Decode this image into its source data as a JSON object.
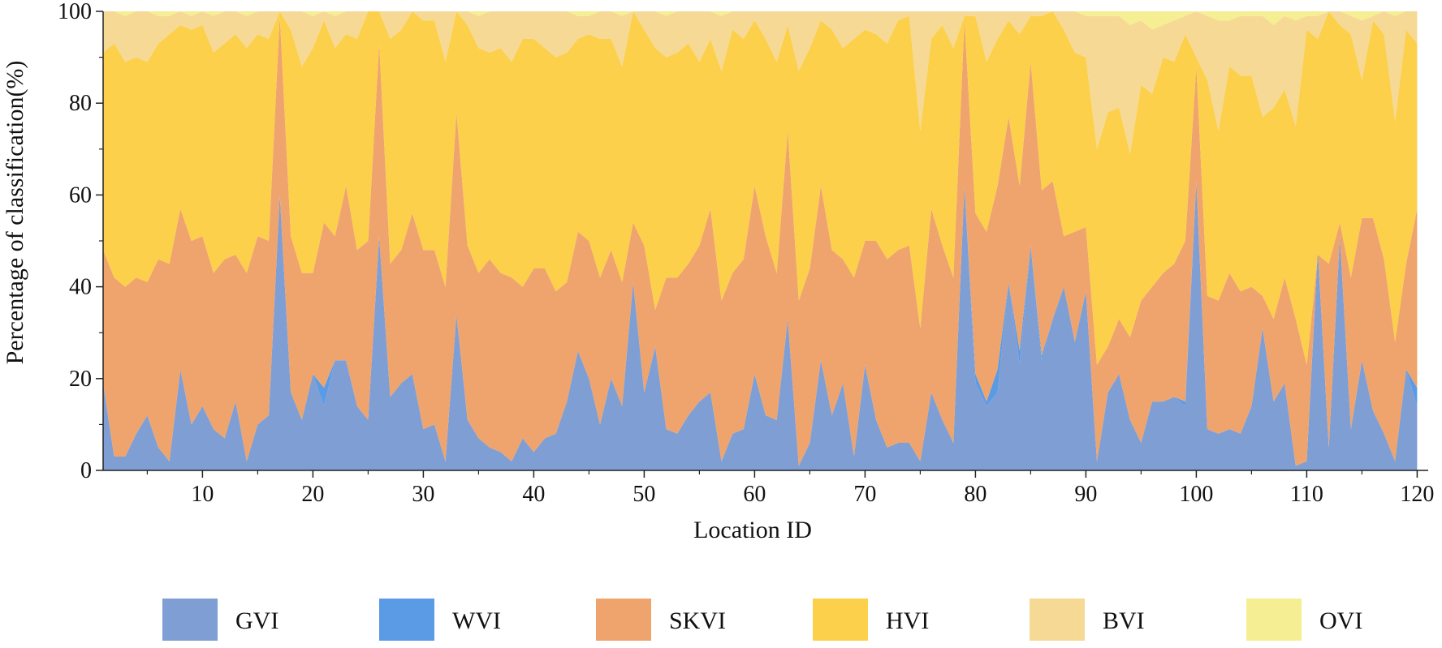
{
  "chart_data": {
    "type": "area",
    "stacked": true,
    "xlabel": "Location ID",
    "ylabel": "Percentage of classification(%)",
    "xlim": [
      1,
      121
    ],
    "ylim": [
      0,
      100
    ],
    "x_ticks": [
      10,
      20,
      30,
      40,
      50,
      60,
      70,
      80,
      90,
      100,
      110,
      120
    ],
    "y_ticks": [
      0,
      20,
      40,
      60,
      80,
      100
    ],
    "legend_position": "bottom",
    "cumulative_boundaries": {
      "description": "Upper boundary of each stacked band (percent)",
      "GVI": [
        19,
        3,
        3,
        8,
        12,
        5,
        2,
        22,
        10,
        14,
        9,
        7,
        15,
        2,
        10,
        12,
        60,
        17,
        11,
        21,
        14,
        24,
        24,
        14,
        11,
        51,
        16,
        19,
        21,
        9,
        10,
        2,
        34,
        11,
        7,
        5,
        4,
        2,
        7,
        4,
        7,
        8,
        15,
        26,
        20,
        10,
        20,
        14,
        41,
        17,
        27,
        9,
        8,
        12,
        15,
        17,
        2,
        8,
        9,
        21,
        12,
        11,
        33,
        1,
        6,
        24,
        12,
        19,
        3,
        23,
        11,
        5,
        6,
        6,
        2,
        17,
        11,
        6,
        62,
        19,
        14,
        17,
        41,
        23,
        49,
        24,
        33,
        40,
        28,
        39,
        2,
        17,
        21,
        11,
        6,
        15,
        15,
        16,
        14,
        63,
        9,
        8,
        9,
        8,
        14,
        31,
        15,
        19,
        1,
        2,
        48,
        5,
        51,
        9,
        24,
        13,
        8,
        2,
        22,
        14
      ],
      "WVI": [
        19,
        3,
        3,
        8,
        12,
        5,
        2,
        22,
        10,
        14,
        9,
        7,
        15,
        2,
        10,
        12,
        60,
        17,
        11,
        21,
        18,
        24,
        24,
        14,
        11,
        51,
        16,
        19,
        21,
        9,
        10,
        2,
        34,
        11,
        7,
        5,
        4,
        2,
        7,
        4,
        7,
        8,
        15,
        26,
        20,
        10,
        20,
        14,
        41,
        17,
        27,
        9,
        8,
        12,
        15,
        17,
        2,
        8,
        9,
        21,
        12,
        11,
        33,
        1,
        6,
        24,
        12,
        19,
        3,
        23,
        11,
        5,
        6,
        6,
        2,
        17,
        11,
        6,
        62,
        21,
        15,
        22,
        41,
        26,
        49,
        25,
        33,
        40,
        28,
        39,
        2,
        17,
        21,
        11,
        6,
        15,
        15,
        16,
        15,
        63,
        9,
        8,
        9,
        8,
        14,
        31,
        15,
        19,
        1,
        2,
        48,
        5,
        51,
        9,
        24,
        13,
        8,
        2,
        22,
        18
      ],
      "SKVI": [
        48,
        42,
        40,
        42,
        41,
        46,
        45,
        57,
        50,
        51,
        43,
        46,
        47,
        43,
        51,
        50,
        99,
        51,
        43,
        43,
        54,
        51,
        62,
        48,
        50,
        93,
        45,
        48,
        56,
        48,
        48,
        40,
        78,
        49,
        43,
        46,
        43,
        42,
        40,
        44,
        44,
        39,
        41,
        52,
        50,
        42,
        48,
        41,
        54,
        49,
        35,
        42,
        42,
        45,
        49,
        57,
        37,
        43,
        46,
        62,
        51,
        43,
        74,
        37,
        44,
        62,
        48,
        46,
        42,
        50,
        50,
        46,
        48,
        49,
        31,
        57,
        49,
        42,
        98,
        56,
        52,
        62,
        77,
        62,
        89,
        61,
        63,
        51,
        52,
        53,
        23,
        27,
        33,
        29,
        37,
        40,
        43,
        45,
        50,
        88,
        38,
        37,
        43,
        39,
        40,
        38,
        33,
        42,
        33,
        23,
        47,
        45,
        54,
        42,
        55,
        55,
        46,
        28,
        45,
        57
      ],
      "HVI": [
        91,
        93,
        89,
        90,
        89,
        93,
        95,
        97,
        96,
        97,
        91,
        93,
        95,
        92,
        95,
        94,
        100,
        96,
        88,
        92,
        98,
        92,
        95,
        94,
        100,
        100,
        94,
        96,
        100,
        98,
        98,
        89,
        100,
        97,
        92,
        91,
        92,
        89,
        94,
        94,
        92,
        90,
        91,
        94,
        95,
        94,
        94,
        88,
        100,
        96,
        92,
        90,
        91,
        93,
        89,
        94,
        87,
        96,
        94,
        98,
        94,
        89,
        97,
        87,
        92,
        98,
        96,
        92,
        94,
        96,
        95,
        93,
        98,
        99,
        74,
        94,
        97,
        92,
        99,
        99,
        89,
        94,
        98,
        95,
        99,
        99,
        100,
        96,
        91,
        90,
        70,
        78,
        79,
        69,
        84,
        82,
        90,
        89,
        95,
        90,
        85,
        74,
        88,
        86,
        86,
        77,
        79,
        83,
        75,
        96,
        94,
        100,
        97,
        95,
        85,
        98,
        95,
        76,
        96,
        93
      ],
      "BVI": [
        100,
        100,
        99,
        100,
        100,
        99,
        99,
        100,
        99,
        100,
        99,
        100,
        100,
        99,
        100,
        100,
        100,
        100,
        100,
        99,
        100,
        99,
        100,
        100,
        100,
        100,
        100,
        100,
        100,
        100,
        100,
        100,
        100,
        100,
        99,
        100,
        100,
        100,
        100,
        100,
        100,
        100,
        100,
        99,
        99,
        100,
        100,
        99,
        100,
        100,
        100,
        99,
        100,
        100,
        100,
        100,
        99,
        100,
        100,
        100,
        100,
        100,
        100,
        100,
        100,
        100,
        100,
        100,
        100,
        100,
        100,
        100,
        100,
        100,
        100,
        100,
        100,
        100,
        100,
        100,
        100,
        100,
        100,
        100,
        100,
        100,
        100,
        100,
        100,
        99,
        99,
        99,
        99,
        97,
        98,
        96,
        97,
        98,
        99,
        100,
        99,
        98,
        98,
        99,
        99,
        99,
        97,
        99,
        98,
        99,
        99,
        100,
        100,
        99,
        98,
        99,
        100,
        99,
        100,
        100
      ],
      "OVI": [
        100,
        100,
        100,
        100,
        100,
        100,
        100,
        100,
        100,
        100,
        100,
        100,
        100,
        100,
        100,
        100,
        100,
        100,
        100,
        100,
        100,
        100,
        100,
        100,
        100,
        100,
        100,
        100,
        100,
        100,
        100,
        100,
        100,
        100,
        100,
        100,
        100,
        100,
        100,
        100,
        100,
        100,
        100,
        100,
        100,
        100,
        100,
        100,
        100,
        100,
        100,
        100,
        100,
        100,
        100,
        100,
        100,
        100,
        100,
        100,
        100,
        100,
        100,
        100,
        100,
        100,
        100,
        100,
        100,
        100,
        100,
        100,
        100,
        100,
        100,
        100,
        100,
        100,
        100,
        100,
        100,
        100,
        100,
        100,
        100,
        100,
        100,
        100,
        100,
        100,
        100,
        100,
        100,
        100,
        100,
        100,
        100,
        100,
        100,
        100,
        100,
        100,
        100,
        100,
        100,
        100,
        100,
        100,
        100,
        100,
        100,
        100,
        100,
        100,
        100,
        100,
        100,
        100,
        100,
        100
      ]
    },
    "series": [
      {
        "name": "GVI",
        "color": "#7f9fd4"
      },
      {
        "name": "WVI",
        "color": "#5b9be6"
      },
      {
        "name": "SKVI",
        "color": "#efa46e"
      },
      {
        "name": "HVI",
        "color": "#fcd04b"
      },
      {
        "name": "BVI",
        "color": "#f5d995"
      },
      {
        "name": "OVI",
        "color": "#f5ee92"
      }
    ]
  }
}
